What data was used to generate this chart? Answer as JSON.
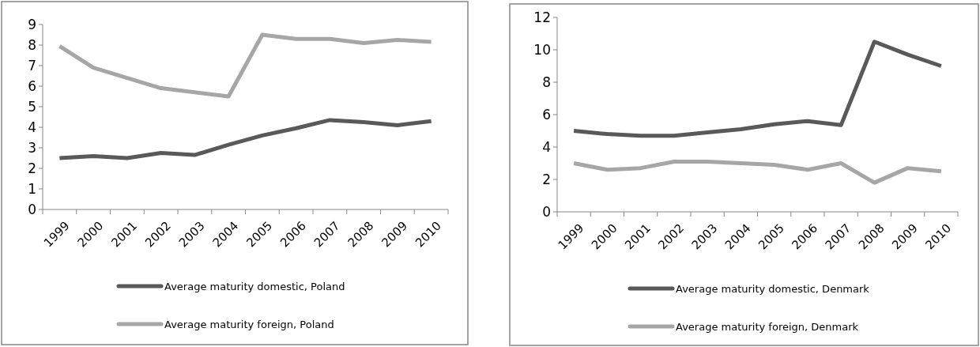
{
  "chart_data": [
    {
      "type": "line",
      "categories": [
        "1999",
        "2000",
        "2001",
        "2002",
        "2003",
        "2004",
        "2005",
        "2006",
        "2007",
        "2008",
        "2009",
        "2010"
      ],
      "ylim": [
        0,
        9
      ],
      "yticks": [
        0,
        1,
        2,
        3,
        4,
        5,
        6,
        7,
        8,
        9
      ],
      "grid": false,
      "legend": "bottom",
      "marker": "none",
      "series": [
        {
          "name": "Average maturity domestic, Poland",
          "color": "#595959",
          "values": [
            2.5,
            2.6,
            2.5,
            2.75,
            2.65,
            3.15,
            3.6,
            3.95,
            4.35,
            4.25,
            4.1,
            4.3
          ]
        },
        {
          "name": "Average maturity foreign, Poland",
          "color": "#a6a6a6",
          "values": [
            7.95,
            6.9,
            6.4,
            5.9,
            5.7,
            5.5,
            8.5,
            8.3,
            8.3,
            8.1,
            8.25,
            8.15
          ]
        }
      ]
    },
    {
      "type": "line",
      "categories": [
        "1999",
        "2000",
        "2001",
        "2002",
        "2003",
        "2004",
        "2005",
        "2006",
        "2007",
        "2008",
        "2009",
        "2010"
      ],
      "ylim": [
        0,
        12
      ],
      "yticks": [
        0,
        2,
        4,
        6,
        8,
        10,
        12
      ],
      "grid": false,
      "legend": "bottom",
      "marker": "none",
      "series": [
        {
          "name": "Average maturity domestic, Denmark",
          "color": "#595959",
          "values": [
            5.0,
            4.8,
            4.7,
            4.7,
            4.9,
            5.1,
            5.4,
            5.6,
            5.35,
            10.5,
            9.7,
            9.0
          ]
        },
        {
          "name": "Average maturity foreign, Denmark",
          "color": "#a6a6a6",
          "values": [
            3.0,
            2.6,
            2.7,
            3.1,
            3.1,
            3.0,
            2.9,
            2.6,
            3.0,
            1.8,
            2.7,
            2.5
          ]
        }
      ]
    }
  ]
}
